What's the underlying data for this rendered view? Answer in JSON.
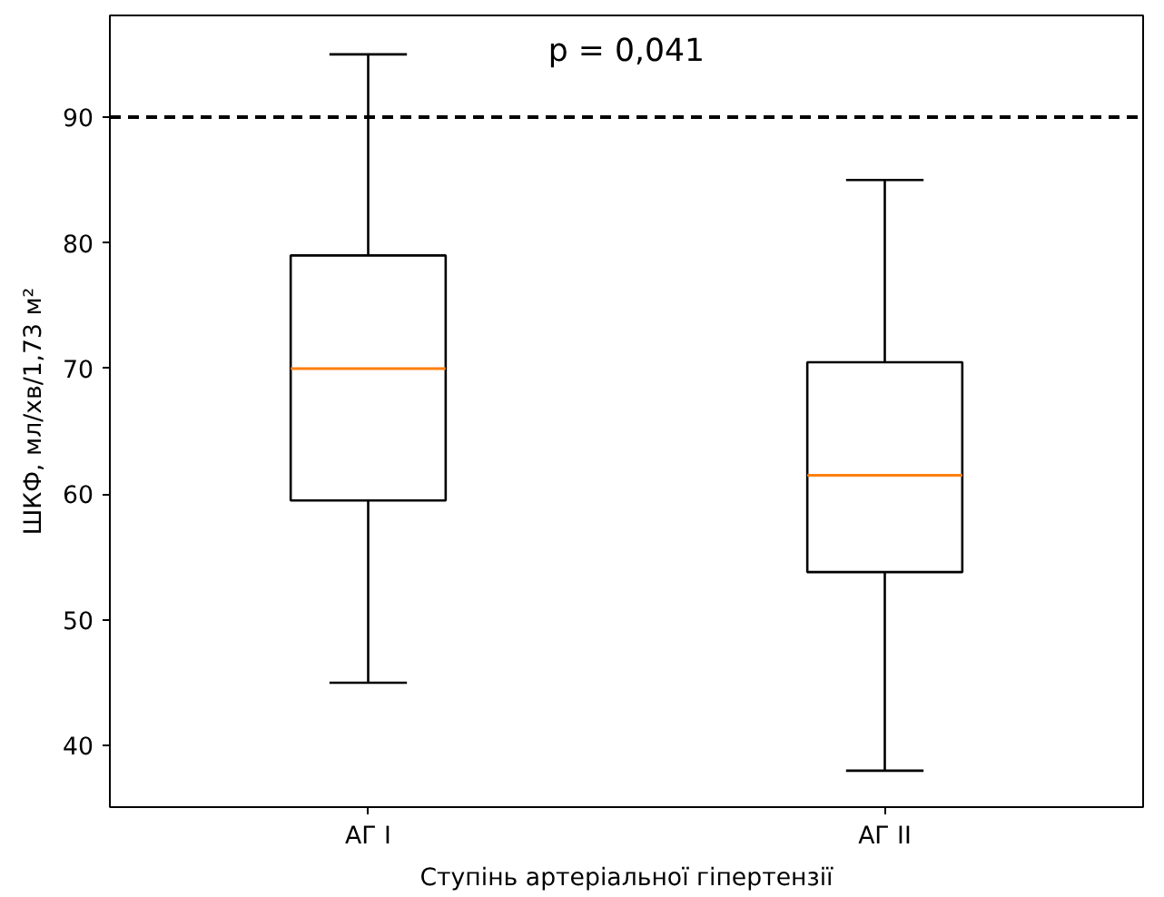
{
  "chart_data": {
    "type": "box",
    "xlabel": "Ступінь артеріальної гіпертензії",
    "ylabel": "ШКФ, мл/хв/1,73 м²",
    "categories": [
      "АГ I",
      "АГ II"
    ],
    "boxes": [
      {
        "low": 45,
        "q1": 59.5,
        "median": 70,
        "q3": 79,
        "high": 95
      },
      {
        "low": 38,
        "q1": 53.8,
        "median": 61.5,
        "q3": 70.5,
        "high": 85
      }
    ],
    "color": "#000000",
    "ylim": [
      35.1,
      98.1
    ],
    "yticks": [
      40,
      50,
      60,
      70,
      80,
      90
    ],
    "ref_lines": [
      {
        "axis": "y",
        "value": 90,
        "label": null,
        "color": "#000000",
        "line_style": "dashed"
      }
    ],
    "annotations": [
      "p = 0,041"
    ],
    "grid": false
  }
}
